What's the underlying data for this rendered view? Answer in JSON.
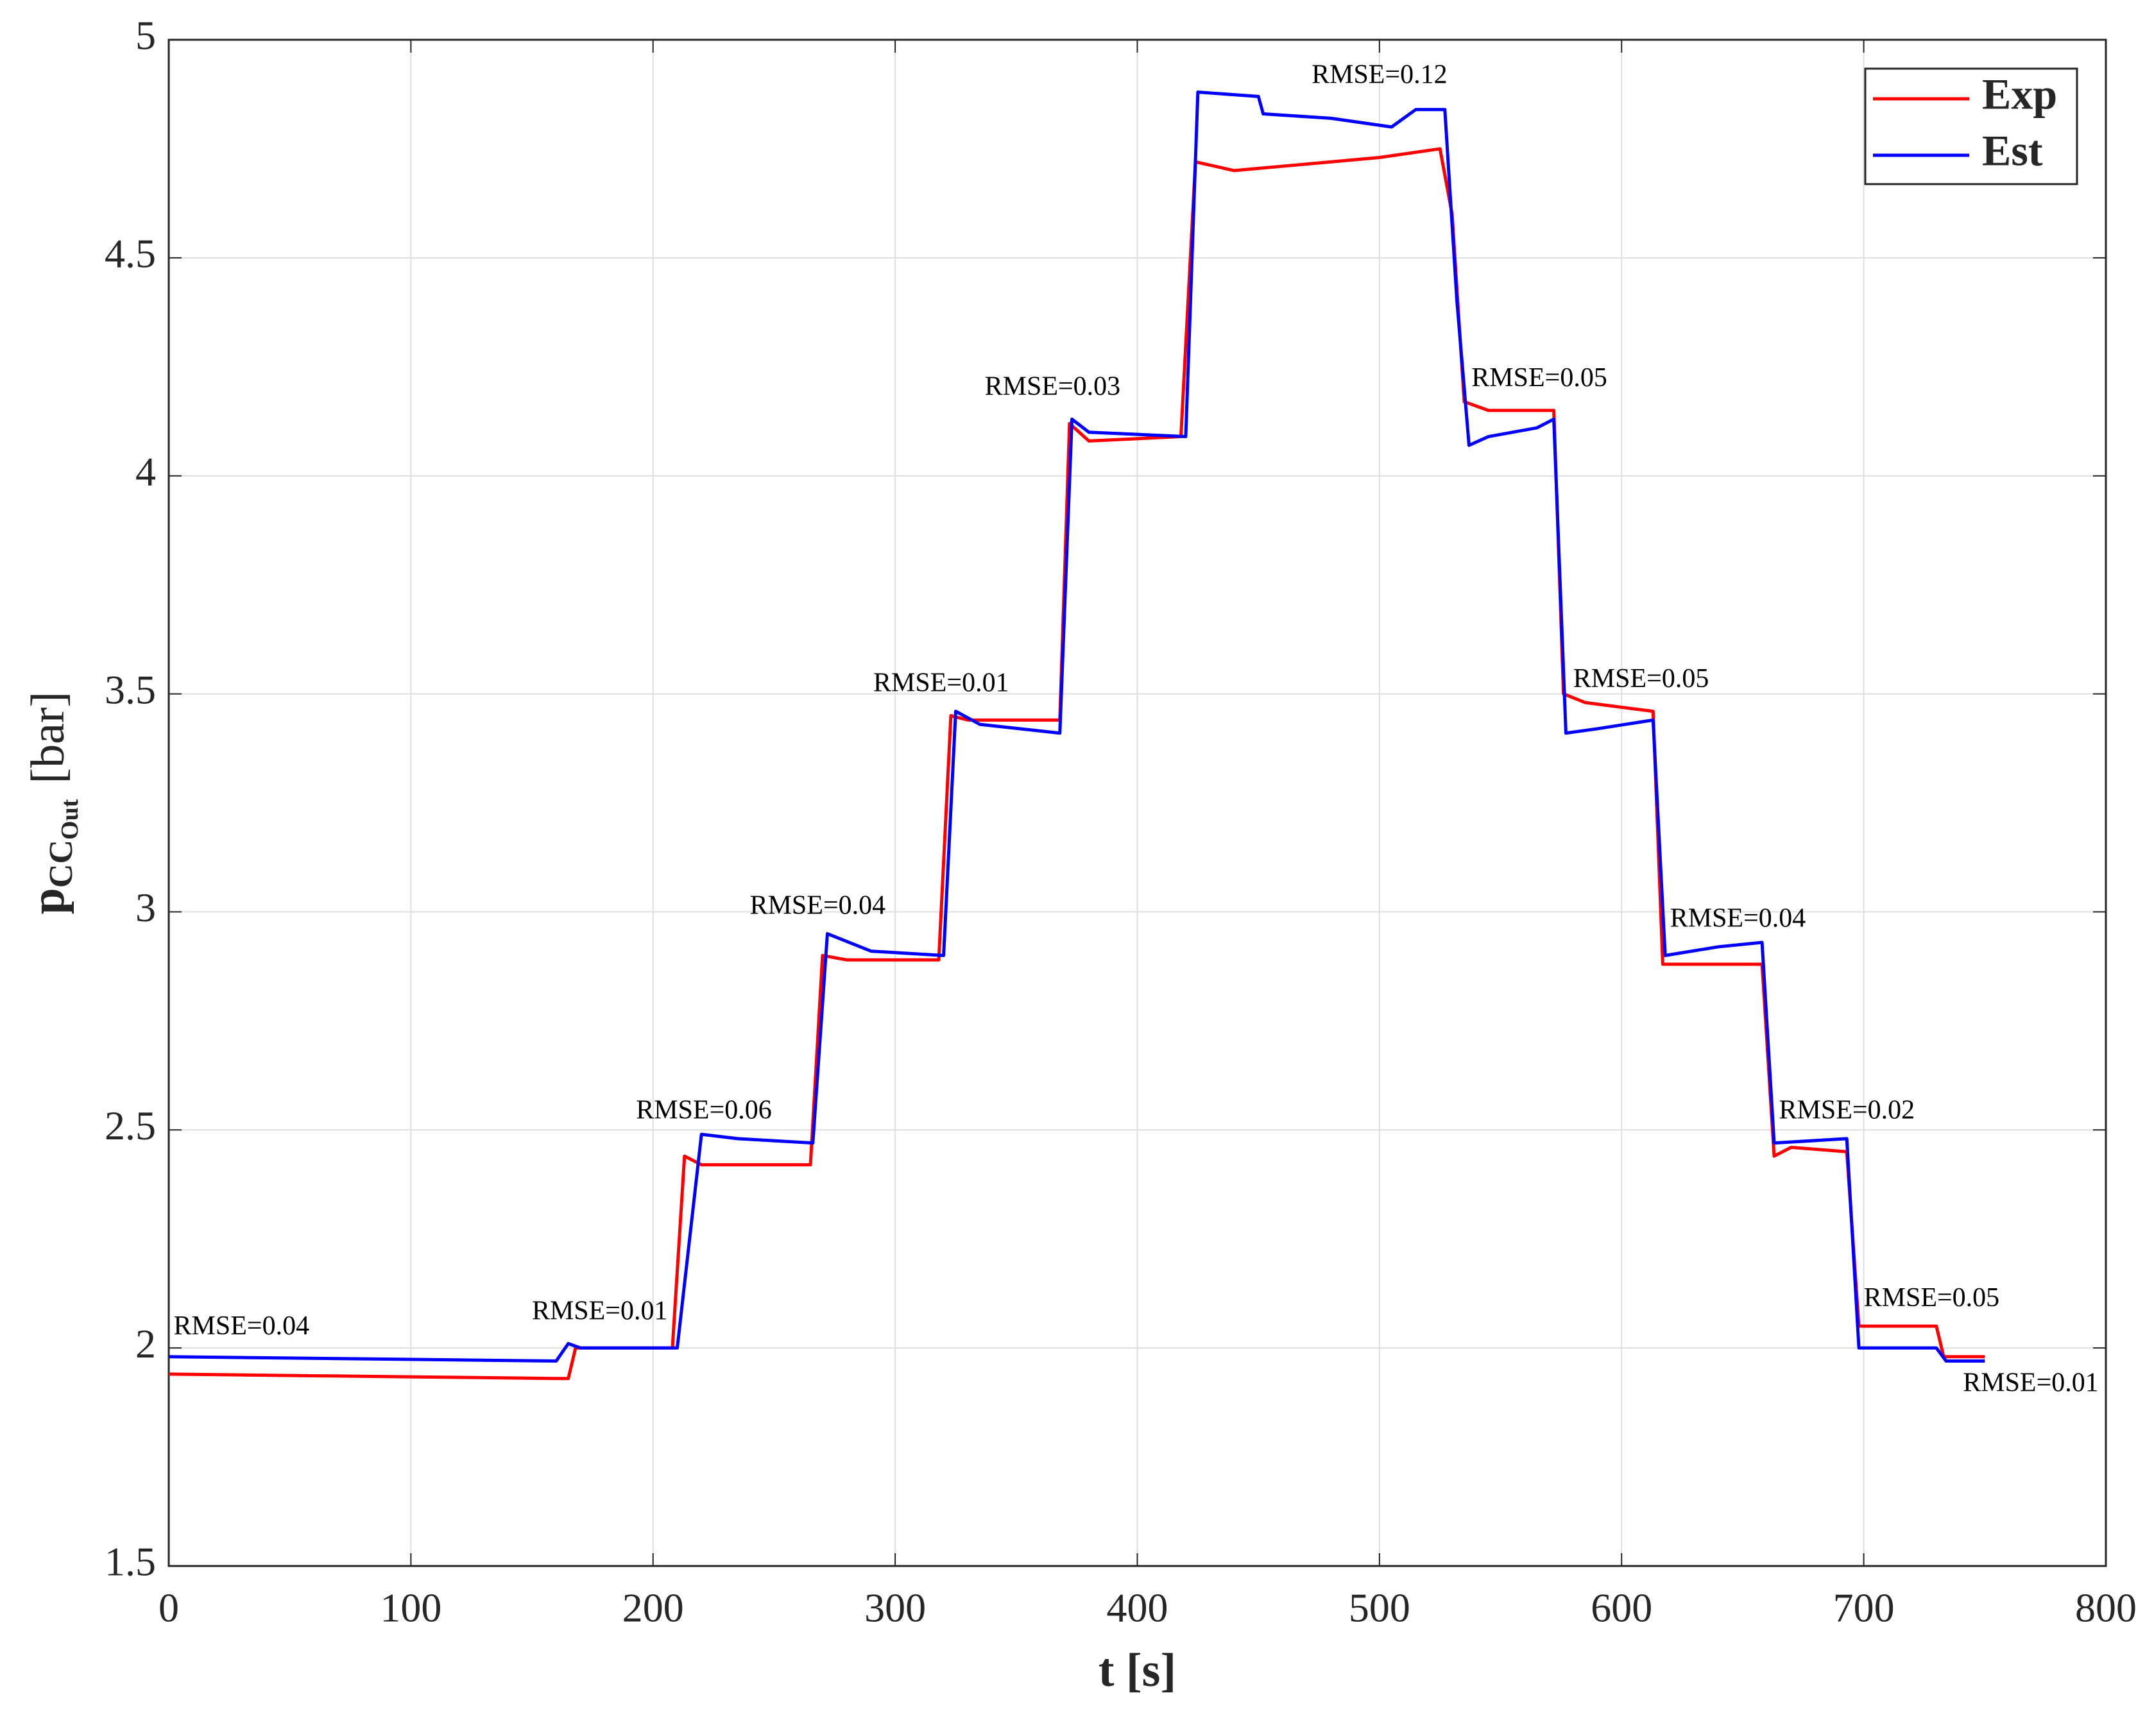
{
  "chart_data": {
    "type": "line",
    "x_label": "t [s]",
    "y_label": "p",
    "y_label_sub": "CC",
    "y_label_subsub": "Out",
    "y_label_unit": "[bar]",
    "xlim": [
      0,
      800
    ],
    "xticks": [
      0,
      100,
      200,
      300,
      400,
      500,
      600,
      700,
      800
    ],
    "ylim": [
      1.5,
      5
    ],
    "yticks": [
      1.5,
      2,
      2.5,
      3,
      3.5,
      4,
      4.5,
      5
    ],
    "grid": true,
    "legend": "top-right",
    "series": [
      {
        "name": "Exp",
        "color": "#ff0000",
        "x": [
          0,
          160,
          165,
          168,
          208,
          213,
          220,
          265,
          270,
          280,
          318,
          323,
          330,
          368,
          372,
          380,
          418,
          424,
          440,
          500,
          525,
          530,
          535,
          545,
          572,
          576,
          585,
          613,
          617,
          630,
          658,
          663,
          670,
          693,
          698,
          730,
          733,
          750
        ],
        "values": [
          1.94,
          1.93,
          1.93,
          2.0,
          2.0,
          2.44,
          2.42,
          2.42,
          2.9,
          2.89,
          2.89,
          3.45,
          3.44,
          3.44,
          4.12,
          4.08,
          4.09,
          4.72,
          4.7,
          4.73,
          4.75,
          4.6,
          4.17,
          4.15,
          4.15,
          3.5,
          3.48,
          3.46,
          2.88,
          2.88,
          2.88,
          2.44,
          2.46,
          2.45,
          2.05,
          2.05,
          1.98,
          1.98
        ]
      },
      {
        "name": "Est",
        "color": "#0000ff",
        "x": [
          0,
          160,
          165,
          170,
          210,
          220,
          235,
          266,
          272,
          290,
          320,
          325,
          335,
          368,
          373,
          380,
          420,
          425,
          450,
          452,
          480,
          505,
          515,
          527,
          532,
          537,
          545,
          565,
          572,
          577,
          590,
          613,
          618,
          640,
          658,
          663,
          693,
          698,
          730,
          734,
          750
        ],
        "values": [
          1.98,
          1.97,
          2.01,
          2.0,
          2.0,
          2.49,
          2.48,
          2.47,
          2.95,
          2.91,
          2.9,
          3.46,
          3.43,
          3.41,
          4.13,
          4.1,
          4.09,
          4.88,
          4.87,
          4.83,
          4.82,
          4.8,
          4.84,
          4.84,
          4.4,
          4.07,
          4.09,
          4.11,
          4.13,
          3.41,
          3.42,
          3.44,
          2.9,
          2.92,
          2.93,
          2.47,
          2.48,
          2.0,
          2.0,
          1.97,
          1.97
        ]
      }
    ],
    "annotations": [
      "RMSE=0.04",
      "RMSE=0.01",
      "RMSE=0.06",
      "RMSE=0.04",
      "RMSE=0.01",
      "RMSE=0.03",
      "RMSE=0.12",
      "RMSE=0.05",
      "RMSE=0.05",
      "RMSE=0.04",
      "RMSE=0.02",
      "RMSE=0.05",
      "RMSE=0.01"
    ]
  }
}
